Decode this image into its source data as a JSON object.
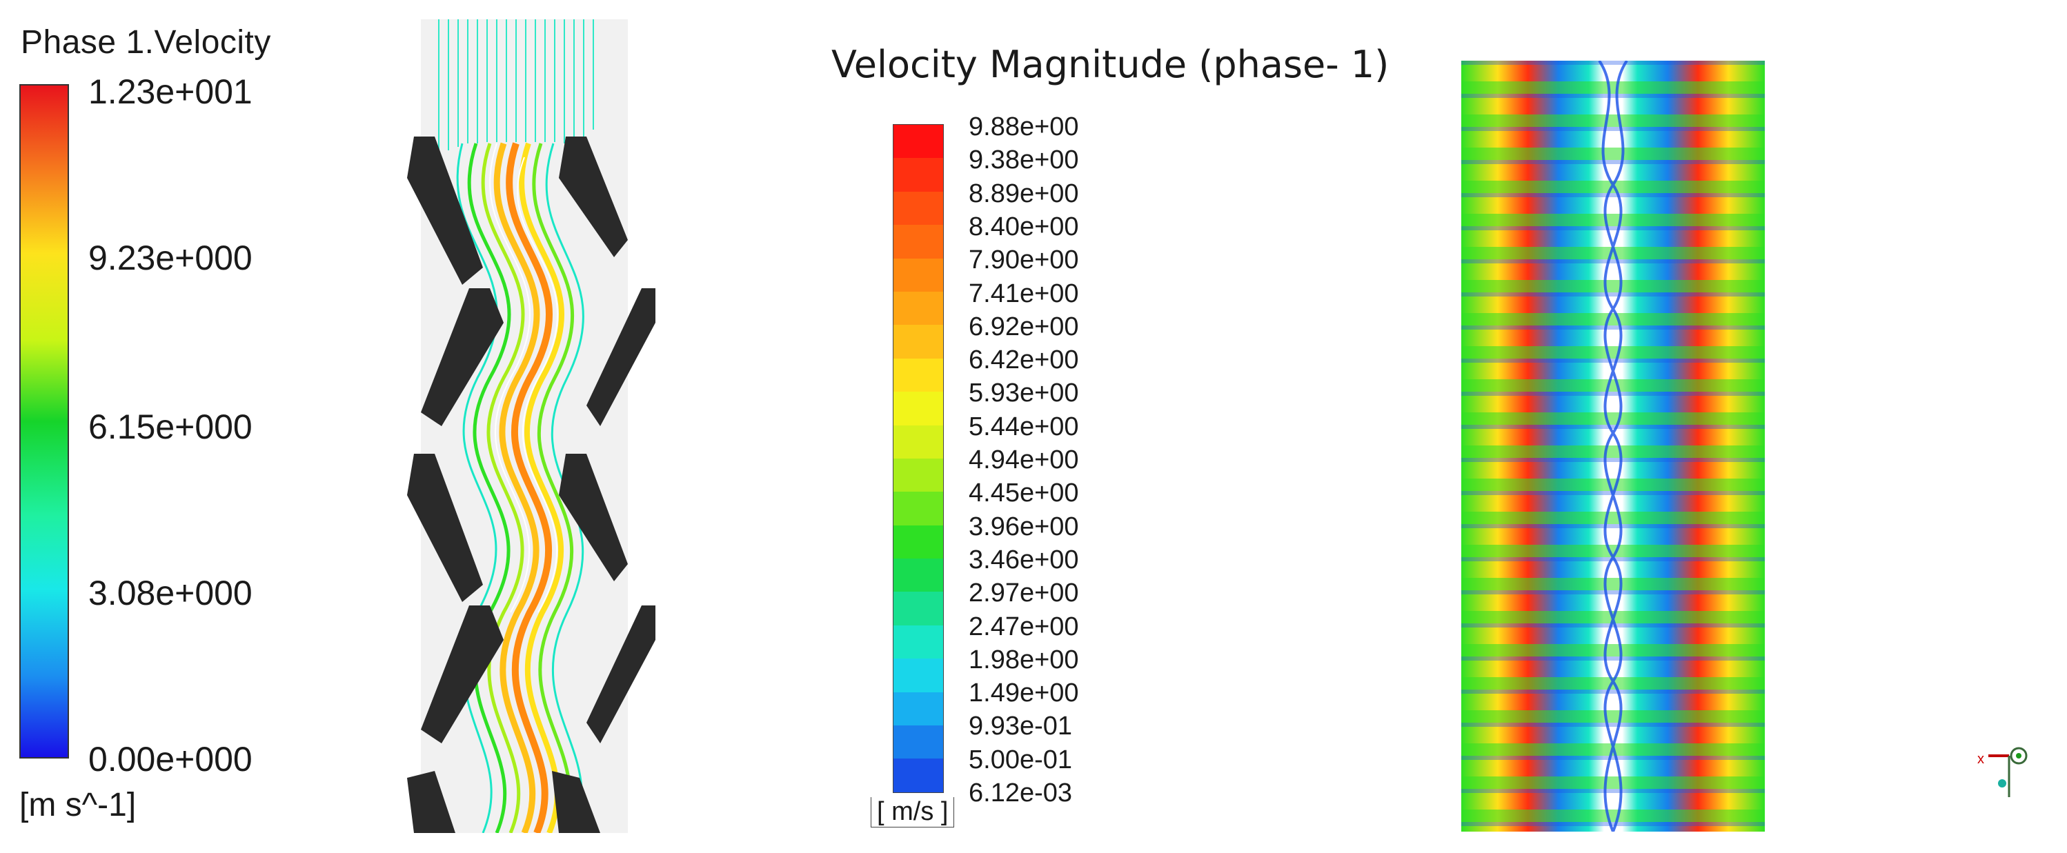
{
  "legend_left": {
    "title": "Phase 1.Velocity",
    "ticks": [
      "1.23e+001",
      "9.23e+000",
      "6.15e+000",
      "3.08e+000",
      "0.00e+000"
    ],
    "unit": "[m s^-1]"
  },
  "legend_right": {
    "title": "Velocity Magnitude (phase- 1)",
    "ticks": [
      "9.88e+00",
      "9.38e+00",
      "8.89e+00",
      "8.40e+00",
      "7.90e+00",
      "7.41e+00",
      "6.92e+00",
      "6.42e+00",
      "5.93e+00",
      "5.44e+00",
      "4.94e+00",
      "4.45e+00",
      "3.96e+00",
      "3.46e+00",
      "2.97e+00",
      "2.47e+00",
      "1.98e+00",
      "1.49e+00",
      "9.93e-01",
      "5.00e-01",
      "6.12e-03"
    ],
    "unit": "[ m/s ]",
    "colors": [
      "#ff1010",
      "#ff3010",
      "#ff5010",
      "#ff6a10",
      "#ff8a10",
      "#ffa614",
      "#ffc018",
      "#ffe01a",
      "#f2f51a",
      "#d6f21a",
      "#a8ee1a",
      "#6de81e",
      "#2ee024",
      "#18dc50",
      "#18e090",
      "#19e6c6",
      "#19d6ea",
      "#18b0f0",
      "#1880ec",
      "#1850e8",
      "#1020e0"
    ]
  },
  "axis_triad": {
    "x_label": "x"
  },
  "colors": {
    "baffle": "#2a2a2a",
    "flow_low": "#19e6c6",
    "flow_mid": "#2ee024",
    "flow_high": "#ff8a10"
  }
}
